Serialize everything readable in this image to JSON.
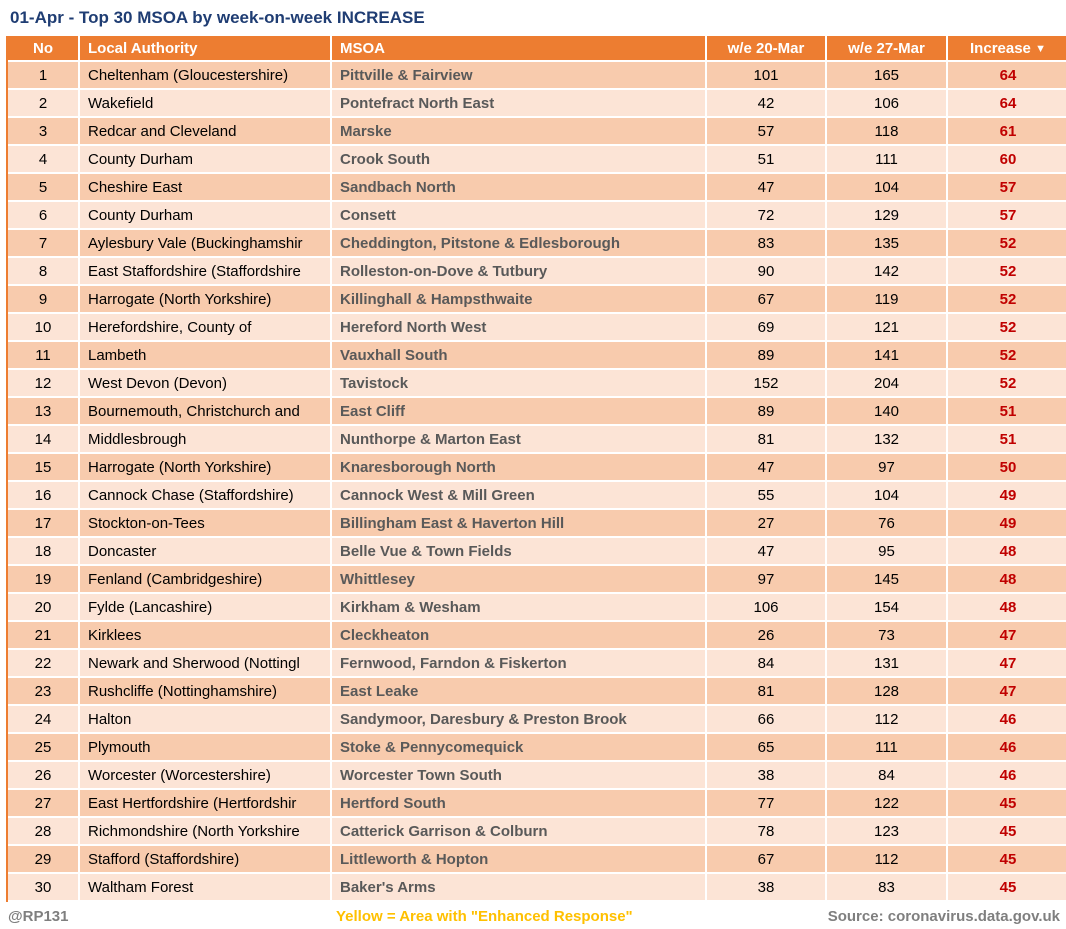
{
  "title": "01-Apr - Top 30 MSOA by week-on-week INCREASE",
  "colors": {
    "header_orange": "#ED7D31",
    "row_dark": "#F8CBAD",
    "row_light": "#FCE4D6",
    "title_navy": "#1F3D73",
    "increase_red": "#C00000",
    "msoa_gray": "#595959",
    "footer_gray": "#7F7F7F",
    "legend_yellow": "#FFC000"
  },
  "table": {
    "headers": {
      "no": "No",
      "local_authority": "Local Authority",
      "msoa": "MSOA",
      "we_20_mar": "w/e 20-Mar",
      "we_27_mar": "w/e 27-Mar",
      "increase": "Increase",
      "sort_arrow": "▼"
    },
    "rows": [
      {
        "no": "1",
        "local_authority": "Cheltenham (Gloucestershire)",
        "msoa": "Pittville & Fairview",
        "we_20_mar": "101",
        "we_27_mar": "165",
        "increase": "64"
      },
      {
        "no": "2",
        "local_authority": "Wakefield",
        "msoa": "Pontefract North East",
        "we_20_mar": "42",
        "we_27_mar": "106",
        "increase": "64"
      },
      {
        "no": "3",
        "local_authority": "Redcar and Cleveland",
        "msoa": "Marske",
        "we_20_mar": "57",
        "we_27_mar": "118",
        "increase": "61"
      },
      {
        "no": "4",
        "local_authority": "County Durham",
        "msoa": "Crook South",
        "we_20_mar": "51",
        "we_27_mar": "111",
        "increase": "60"
      },
      {
        "no": "5",
        "local_authority": "Cheshire East",
        "msoa": "Sandbach North",
        "we_20_mar": "47",
        "we_27_mar": "104",
        "increase": "57"
      },
      {
        "no": "6",
        "local_authority": "County Durham",
        "msoa": "Consett",
        "we_20_mar": "72",
        "we_27_mar": "129",
        "increase": "57"
      },
      {
        "no": "7",
        "local_authority": "Aylesbury Vale (Buckinghamshir",
        "msoa": "Cheddington, Pitstone & Edlesborough",
        "we_20_mar": "83",
        "we_27_mar": "135",
        "increase": "52"
      },
      {
        "no": "8",
        "local_authority": "East Staffordshire (Staffordshire",
        "msoa": "Rolleston-on-Dove & Tutbury",
        "we_20_mar": "90",
        "we_27_mar": "142",
        "increase": "52"
      },
      {
        "no": "9",
        "local_authority": "Harrogate (North Yorkshire)",
        "msoa": "Killinghall & Hampsthwaite",
        "we_20_mar": "67",
        "we_27_mar": "119",
        "increase": "52"
      },
      {
        "no": "10",
        "local_authority": "Herefordshire, County of",
        "msoa": "Hereford North West",
        "we_20_mar": "69",
        "we_27_mar": "121",
        "increase": "52"
      },
      {
        "no": "11",
        "local_authority": "Lambeth",
        "msoa": "Vauxhall South",
        "we_20_mar": "89",
        "we_27_mar": "141",
        "increase": "52"
      },
      {
        "no": "12",
        "local_authority": "West Devon (Devon)",
        "msoa": "Tavistock",
        "we_20_mar": "152",
        "we_27_mar": "204",
        "increase": "52"
      },
      {
        "no": "13",
        "local_authority": "Bournemouth, Christchurch and",
        "msoa": "East Cliff",
        "we_20_mar": "89",
        "we_27_mar": "140",
        "increase": "51"
      },
      {
        "no": "14",
        "local_authority": "Middlesbrough",
        "msoa": "Nunthorpe & Marton East",
        "we_20_mar": "81",
        "we_27_mar": "132",
        "increase": "51"
      },
      {
        "no": "15",
        "local_authority": "Harrogate (North Yorkshire)",
        "msoa": "Knaresborough North",
        "we_20_mar": "47",
        "we_27_mar": "97",
        "increase": "50"
      },
      {
        "no": "16",
        "local_authority": "Cannock Chase (Staffordshire)",
        "msoa": "Cannock West & Mill Green",
        "we_20_mar": "55",
        "we_27_mar": "104",
        "increase": "49"
      },
      {
        "no": "17",
        "local_authority": "Stockton-on-Tees",
        "msoa": "Billingham East & Haverton Hill",
        "we_20_mar": "27",
        "we_27_mar": "76",
        "increase": "49"
      },
      {
        "no": "18",
        "local_authority": "Doncaster",
        "msoa": "Belle Vue & Town Fields",
        "we_20_mar": "47",
        "we_27_mar": "95",
        "increase": "48"
      },
      {
        "no": "19",
        "local_authority": "Fenland (Cambridgeshire)",
        "msoa": "Whittlesey",
        "we_20_mar": "97",
        "we_27_mar": "145",
        "increase": "48"
      },
      {
        "no": "20",
        "local_authority": "Fylde (Lancashire)",
        "msoa": "Kirkham & Wesham",
        "we_20_mar": "106",
        "we_27_mar": "154",
        "increase": "48"
      },
      {
        "no": "21",
        "local_authority": "Kirklees",
        "msoa": "Cleckheaton",
        "we_20_mar": "26",
        "we_27_mar": "73",
        "increase": "47"
      },
      {
        "no": "22",
        "local_authority": "Newark and Sherwood (Nottingl",
        "msoa": "Fernwood, Farndon & Fiskerton",
        "we_20_mar": "84",
        "we_27_mar": "131",
        "increase": "47"
      },
      {
        "no": "23",
        "local_authority": "Rushcliffe (Nottinghamshire)",
        "msoa": "East Leake",
        "we_20_mar": "81",
        "we_27_mar": "128",
        "increase": "47"
      },
      {
        "no": "24",
        "local_authority": "Halton",
        "msoa": "Sandymoor, Daresbury & Preston Brook",
        "we_20_mar": "66",
        "we_27_mar": "112",
        "increase": "46"
      },
      {
        "no": "25",
        "local_authority": "Plymouth",
        "msoa": "Stoke & Pennycomequick",
        "we_20_mar": "65",
        "we_27_mar": "111",
        "increase": "46"
      },
      {
        "no": "26",
        "local_authority": "Worcester (Worcestershire)",
        "msoa": "Worcester Town South",
        "we_20_mar": "38",
        "we_27_mar": "84",
        "increase": "46"
      },
      {
        "no": "27",
        "local_authority": "East Hertfordshire (Hertfordshir",
        "msoa": "Hertford South",
        "we_20_mar": "77",
        "we_27_mar": "122",
        "increase": "45"
      },
      {
        "no": "28",
        "local_authority": "Richmondshire (North Yorkshire",
        "msoa": "Catterick Garrison & Colburn",
        "we_20_mar": "78",
        "we_27_mar": "123",
        "increase": "45"
      },
      {
        "no": "29",
        "local_authority": "Stafford (Staffordshire)",
        "msoa": "Littleworth & Hopton",
        "we_20_mar": "67",
        "we_27_mar": "112",
        "increase": "45"
      },
      {
        "no": "30",
        "local_authority": "Waltham Forest",
        "msoa": "Baker's Arms",
        "we_20_mar": "38",
        "we_27_mar": "83",
        "increase": "45"
      }
    ]
  },
  "footer": {
    "credit": "@RP131",
    "legend": "Yellow = Area with \"Enhanced Response\"",
    "source": "Source: coronavirus.data.gov.uk"
  }
}
